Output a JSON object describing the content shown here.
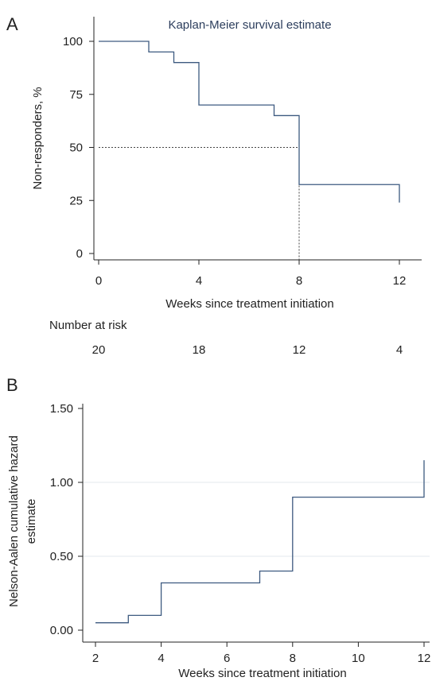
{
  "panels": {
    "a": {
      "label": "A",
      "title": "Kaplan-Meier survival estimate",
      "xlabel": "Weeks since treatment initiation",
      "ylabel": "Non-responders, %",
      "risk_title": "Number at risk",
      "risk": [
        {
          "x": 0,
          "n": "20"
        },
        {
          "x": 4,
          "n": "18"
        },
        {
          "x": 8,
          "n": "12"
        },
        {
          "x": 12,
          "n": "4"
        }
      ]
    },
    "b": {
      "label": "B",
      "xlabel": "Weeks since treatment initiation",
      "ylabel_line1": "Nelson-Aalen cumulative hazard",
      "ylabel_line2": "estimate"
    }
  },
  "colors": {
    "line": "#3d5a80",
    "grid": "#e3e8ee"
  },
  "chart_data": [
    {
      "type": "line",
      "step": "post",
      "title": "Kaplan-Meier survival estimate",
      "xlabel": "Weeks since treatment initiation",
      "ylabel": "Non-responders, %",
      "xlim": [
        0,
        12
      ],
      "ylim": [
        0,
        100
      ],
      "xticks": [
        0,
        4,
        8,
        12
      ],
      "yticks": [
        0,
        25,
        50,
        75,
        100
      ],
      "ytick_labels": [
        "0",
        "25",
        "50",
        "75",
        "100"
      ],
      "series": [
        {
          "x": [
            0,
            2,
            3,
            4,
            7,
            8,
            12
          ],
          "y": [
            100,
            95,
            90,
            70,
            65,
            32.5,
            24
          ]
        }
      ],
      "median_reference": {
        "x": 8,
        "y": 50
      },
      "number_at_risk": {
        "x": [
          0,
          4,
          8,
          12
        ],
        "n": [
          20,
          18,
          12,
          4
        ]
      }
    },
    {
      "type": "line",
      "step": "post",
      "xlabel": "Weeks since treatment initiation",
      "ylabel": "Nelson-Aalen cumulative hazard estimate",
      "xlim": [
        2,
        12
      ],
      "ylim": [
        0,
        1.5
      ],
      "xticks": [
        2,
        4,
        6,
        8,
        10,
        12
      ],
      "yticks": [
        0,
        0.5,
        1.0,
        1.5
      ],
      "ytick_labels": [
        "0.00",
        "0.50",
        "1.00",
        "1.50"
      ],
      "grid": true,
      "series": [
        {
          "x": [
            2,
            3,
            4,
            7,
            8,
            12
          ],
          "y": [
            0.05,
            0.1,
            0.32,
            0.4,
            0.9,
            1.15
          ]
        }
      ]
    }
  ]
}
